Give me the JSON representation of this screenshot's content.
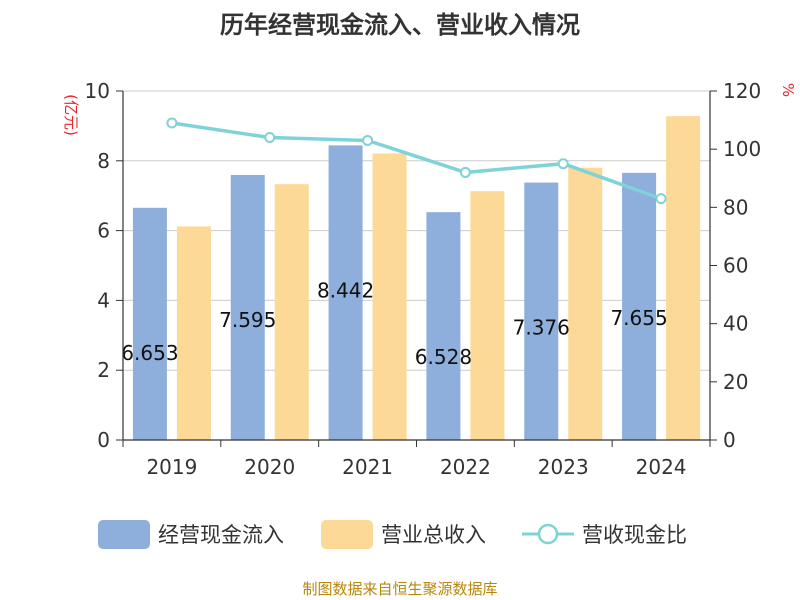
{
  "chart_data": {
    "type": "bar",
    "title": "历年经营现金流入、营业收入情况",
    "categories": [
      "2019",
      "2020",
      "2021",
      "2022",
      "2023",
      "2024"
    ],
    "series": [
      {
        "name": "经营现金流入",
        "type": "bar",
        "axis": "left",
        "color": "#8eaedb",
        "values": [
          6.653,
          7.595,
          8.442,
          6.528,
          7.376,
          7.655
        ]
      },
      {
        "name": "营业总收入",
        "type": "bar",
        "axis": "left",
        "color": "#fdd998",
        "values": [
          6.12,
          7.33,
          8.21,
          7.13,
          7.8,
          9.28
        ]
      },
      {
        "name": "营收现金比",
        "type": "line",
        "axis": "right",
        "color": "#7fd3d8",
        "values": [
          109,
          104,
          103,
          92,
          95,
          83
        ]
      }
    ],
    "y_left": {
      "unit": "(亿元)",
      "ylim": [
        0,
        10
      ],
      "ticks": [
        0,
        2,
        4,
        6,
        8,
        10
      ]
    },
    "y_right": {
      "unit": "%",
      "ylim": [
        0,
        120
      ],
      "ticks": [
        0,
        20,
        40,
        60,
        80,
        100,
        120
      ]
    },
    "data_labels": [
      "6.653",
      "7.595",
      "8.442",
      "6.528",
      "7.376",
      "7.655"
    ],
    "grid": true,
    "legend": "bottom",
    "source": "制图数据来自恒生聚源数据库"
  }
}
